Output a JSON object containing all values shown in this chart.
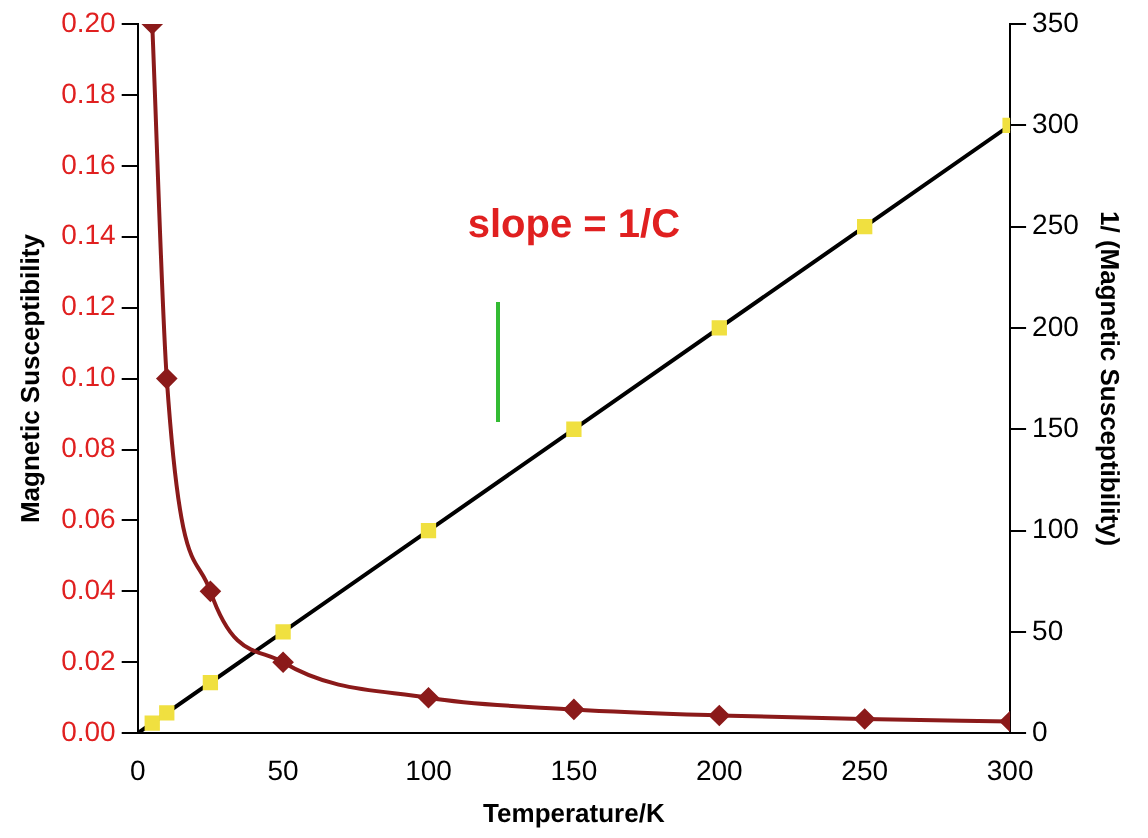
{
  "chart_data": {
    "type": "line",
    "xlabel": "Temperature/K",
    "ylabel": "Magnetic Susceptibility",
    "y2label": "1/ (Magnetic Susceptibility)",
    "xlim": [
      0,
      300
    ],
    "xticks": [
      0,
      50,
      100,
      150,
      200,
      250,
      300
    ],
    "ylim": [
      0,
      0.2
    ],
    "yticks": [
      {
        "value": 0,
        "label": "0.00"
      },
      {
        "value": 0.02,
        "label": "0.02"
      },
      {
        "value": 0.04,
        "label": "0.04"
      },
      {
        "value": 0.06,
        "label": "0.06"
      },
      {
        "value": 0.08,
        "label": "0.08"
      },
      {
        "value": 0.1,
        "label": "0.10"
      },
      {
        "value": 0.12,
        "label": "0.12"
      },
      {
        "value": 0.14,
        "label": "0.14"
      },
      {
        "value": 0.16,
        "label": "0.16"
      },
      {
        "value": 0.18,
        "label": "0.18"
      },
      {
        "value": 0.2,
        "label": "0.20"
      }
    ],
    "y2lim": [
      0,
      350
    ],
    "y2ticks": [
      0,
      50,
      100,
      150,
      200,
      250,
      300,
      350
    ],
    "grid": false,
    "legend": false,
    "annotations": [
      "slope = 1/C"
    ],
    "series": [
      {
        "color": "#8b1a1a",
        "marker": "diamond",
        "x": [
          5,
          10,
          25,
          50,
          100,
          150,
          200,
          250,
          300
        ],
        "values": [
          0.2,
          0.1,
          0.04,
          0.02,
          0.01,
          0.0067,
          0.005,
          0.004,
          0.0033
        ]
      },
      {
        "type": "scatter",
        "color": "#f0e040",
        "marker": "square",
        "axis": "y2",
        "x": [
          5,
          10,
          25,
          50,
          100,
          150,
          200,
          250,
          300
        ],
        "values": [
          5,
          10,
          25,
          50,
          100,
          150,
          200,
          250,
          300
        ]
      },
      {
        "type": "line",
        "color": "#000000",
        "marker": "none",
        "axis": "y2",
        "x": [
          0,
          300
        ],
        "values": [
          0,
          300
        ]
      }
    ]
  }
}
